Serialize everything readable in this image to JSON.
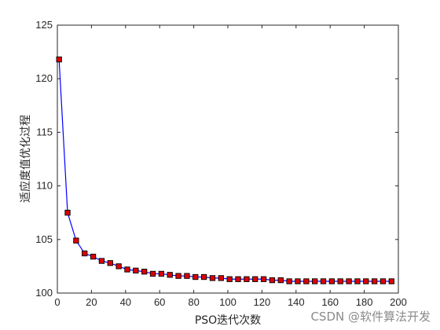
{
  "chart_data": {
    "type": "line",
    "xlabel": "PSO迭代次数",
    "ylabel": "适应度值优化过程",
    "xlim": [
      0,
      200
    ],
    "ylim": [
      100,
      125
    ],
    "xticks": [
      0,
      20,
      40,
      60,
      80,
      100,
      120,
      140,
      160,
      180,
      200
    ],
    "yticks": [
      100,
      105,
      110,
      115,
      120,
      125
    ],
    "grid": false,
    "line_color": "#0000ff",
    "marker": "square",
    "marker_face_color": "#dd0000",
    "marker_edge_color": "#000000",
    "series": [
      {
        "x": [
          1,
          6,
          11,
          16,
          21,
          26,
          31,
          36,
          41,
          46,
          51,
          56,
          61,
          66,
          71,
          76,
          81,
          86,
          91,
          96,
          101,
          106,
          111,
          116,
          121,
          126,
          131,
          136,
          141,
          146,
          151,
          156,
          161,
          166,
          171,
          176,
          181,
          186,
          191,
          196
        ],
        "values": [
          121.8,
          107.5,
          104.9,
          103.7,
          103.4,
          103.0,
          102.8,
          102.5,
          102.2,
          102.1,
          102.0,
          101.8,
          101.8,
          101.7,
          101.6,
          101.6,
          101.5,
          101.5,
          101.4,
          101.4,
          101.3,
          101.3,
          101.3,
          101.3,
          101.3,
          101.2,
          101.2,
          101.1,
          101.1,
          101.1,
          101.1,
          101.1,
          101.1,
          101.1,
          101.1,
          101.1,
          101.1,
          101.1,
          101.1,
          101.1
        ]
      }
    ]
  },
  "watermark": "CSDN @软件算法开发"
}
